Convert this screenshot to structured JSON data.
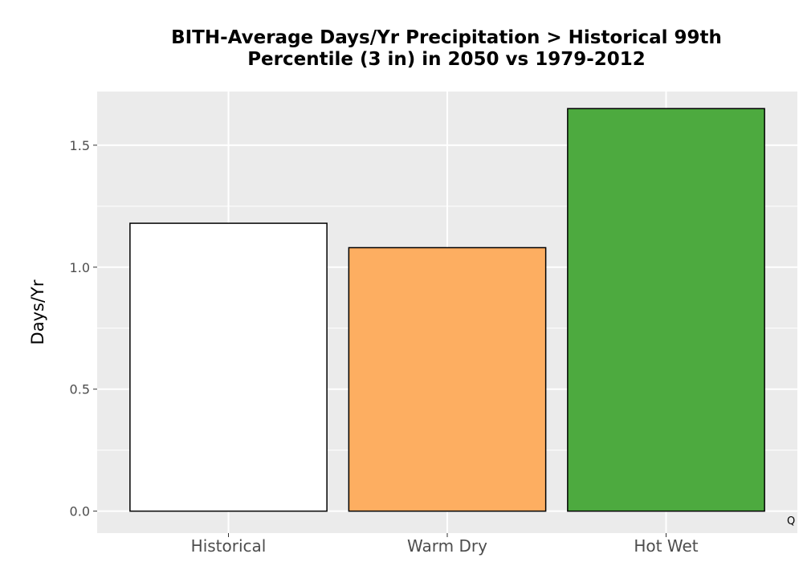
{
  "chart_data": {
    "type": "bar",
    "title_lines": [
      "BITH-Average Days/Yr Precipitation > Historical 99th",
      "Percentile (3 in) in 2050 vs 1979-2012"
    ],
    "xlabel": "",
    "ylabel": "Days/Yr",
    "categories": [
      "Historical",
      "Warm Dry",
      "Hot Wet"
    ],
    "values": [
      1.18,
      1.08,
      1.65
    ],
    "colors": [
      "#ffffff",
      "#fdae61",
      "#4daa3f"
    ],
    "ylim": [
      -0.09,
      1.72
    ],
    "yticks": [
      0.0,
      0.5,
      1.0,
      1.5
    ],
    "ytick_labels": [
      "0.0",
      "0.5",
      "1.0",
      "1.5"
    ],
    "grid": true,
    "panel_background": "#ebebeb",
    "bar_outline": "#000000",
    "corner_mark": "Q"
  }
}
